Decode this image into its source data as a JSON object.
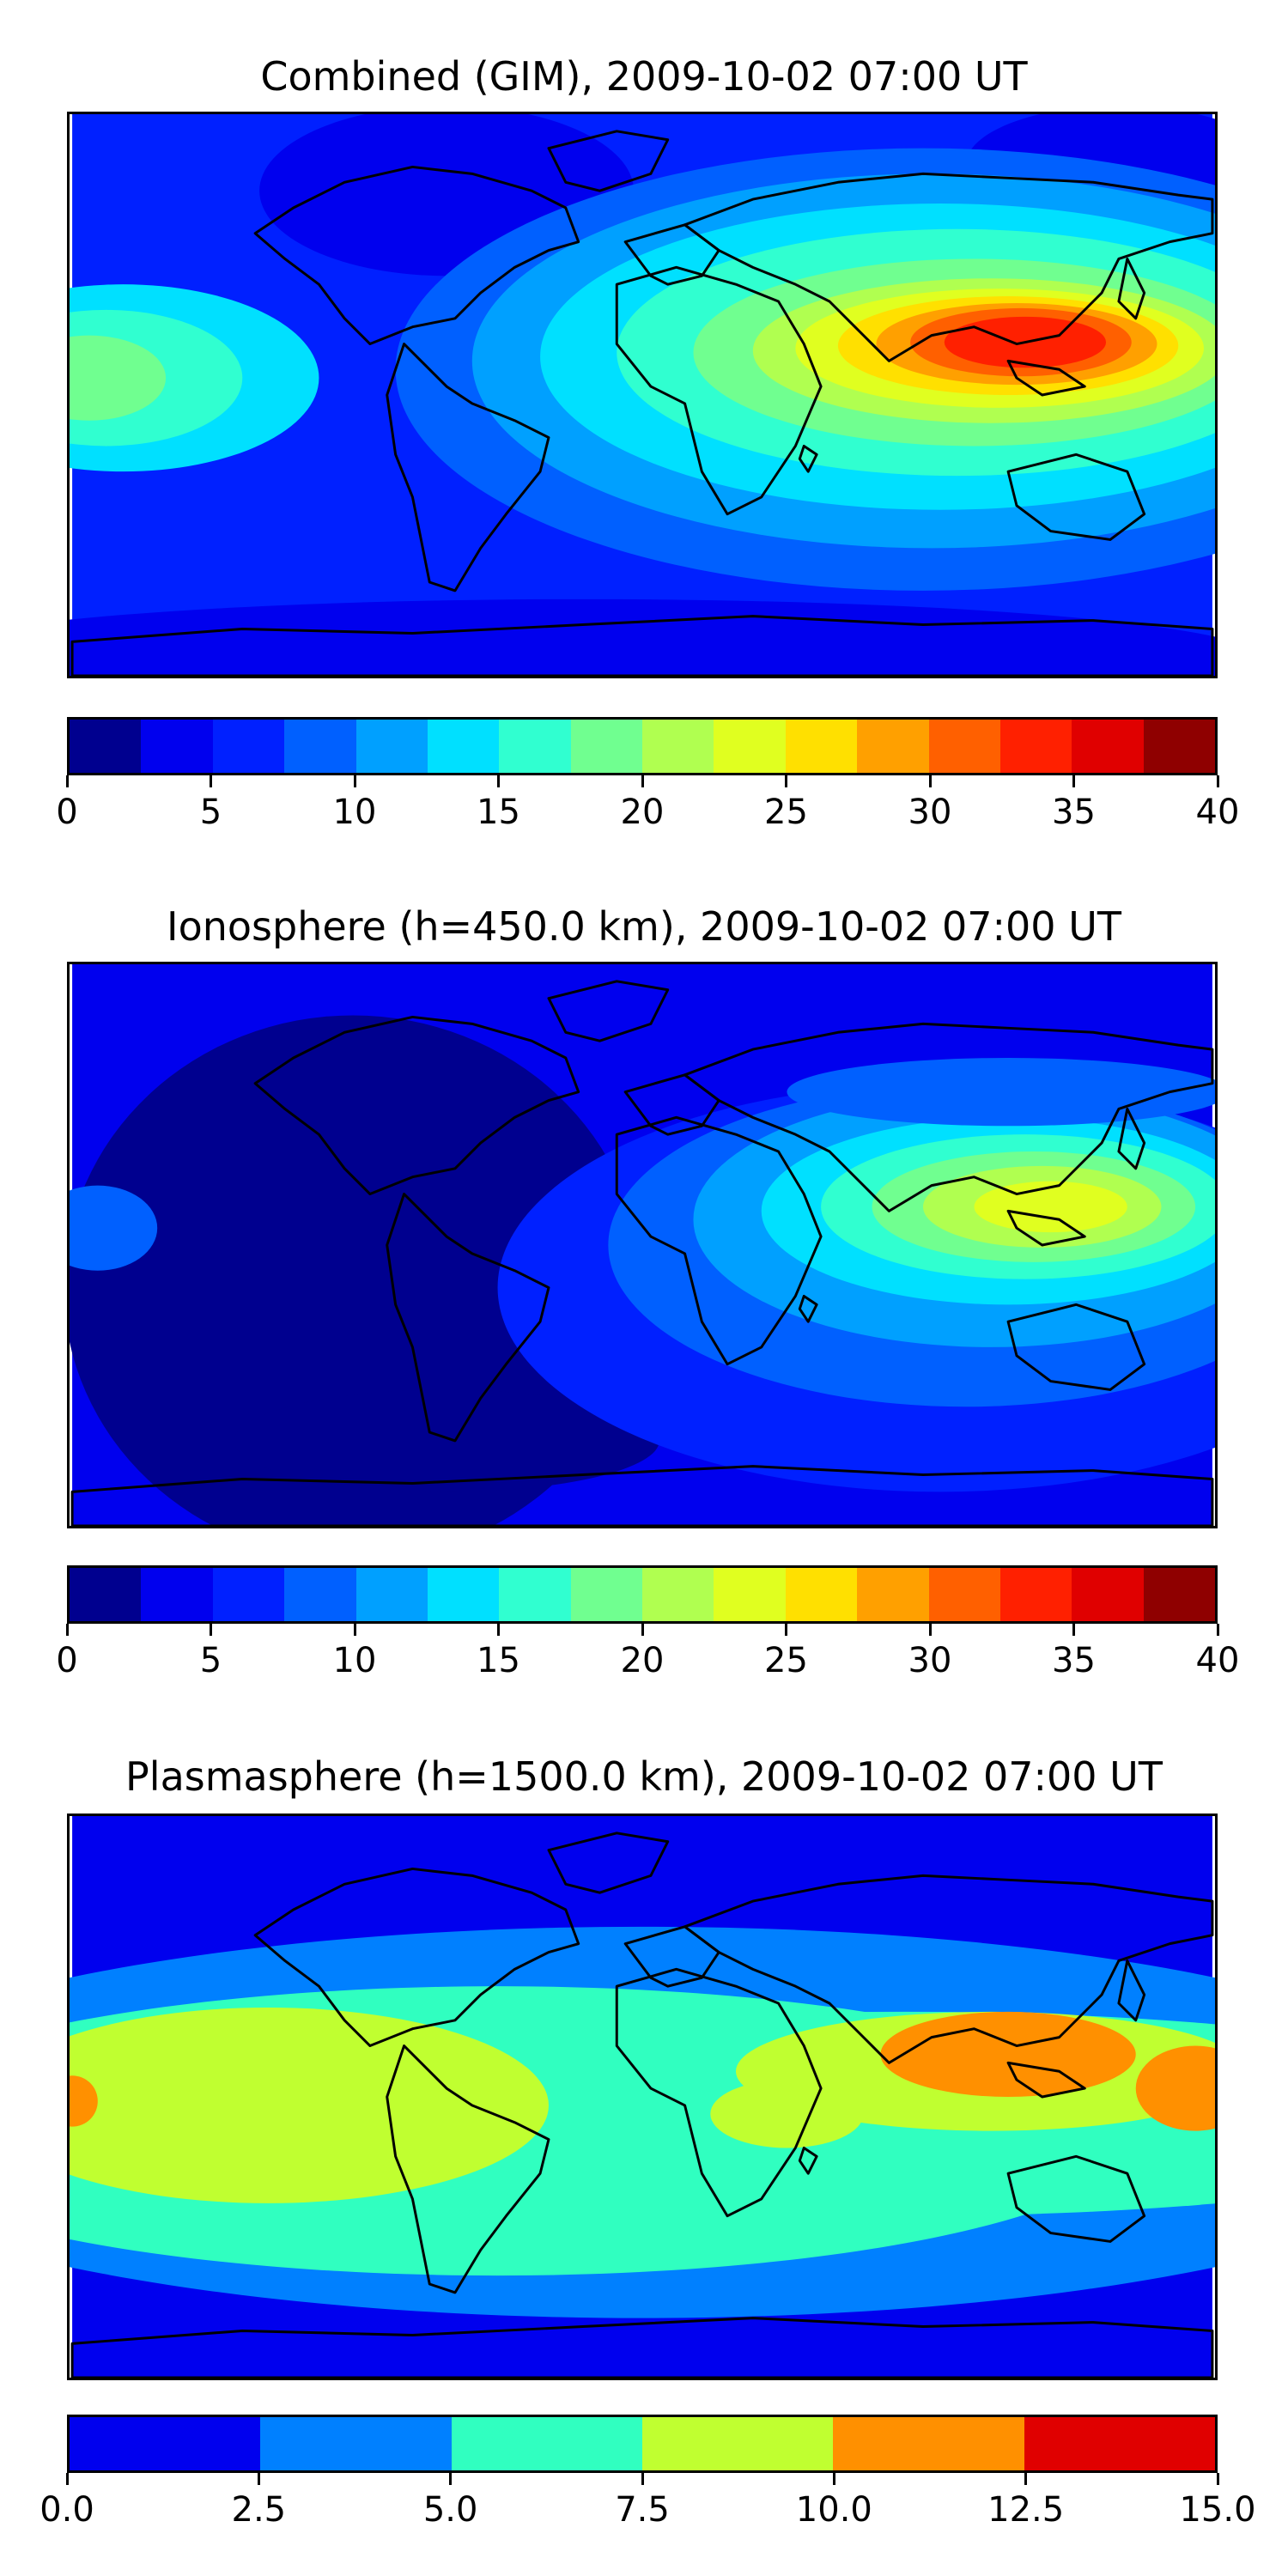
{
  "figure": "TEC maps",
  "colors": {
    "jet15": [
      "#00008f",
      "#0000ee",
      "#0020ff",
      "#0060ff",
      "#00a0ff",
      "#00e0ff",
      "#30ffd0",
      "#70ff90",
      "#b0ff50",
      "#e0ff20",
      "#ffe000",
      "#ffa000",
      "#ff6000",
      "#ff2000",
      "#e00000",
      "#8f0000"
    ],
    "jet6": [
      "#0000ee",
      "#0080ff",
      "#30ffc0",
      "#c0ff30",
      "#ff9000",
      "#e00000"
    ],
    "coast": "#000000"
  },
  "panels": [
    {
      "title": "Combined (GIM), 2009-10-02 07:00 UT",
      "colorbar": {
        "min": 0,
        "max": 40,
        "levels": 16,
        "palette": "jet15",
        "ticks": [
          "0",
          "5",
          "10",
          "15",
          "20",
          "25",
          "30",
          "35",
          "40"
        ]
      }
    },
    {
      "title": "Ionosphere  (h=450.0 km), 2009-10-02 07:00 UT",
      "colorbar": {
        "min": 0,
        "max": 40,
        "levels": 16,
        "palette": "jet15",
        "ticks": [
          "0",
          "5",
          "10",
          "15",
          "20",
          "25",
          "30",
          "35",
          "40"
        ]
      }
    },
    {
      "title": "Plasmasphere (h=1500.0 km), 2009-10-02 07:00 UT",
      "colorbar": {
        "min": 0,
        "max": 15,
        "levels": 6,
        "palette": "jet6",
        "ticks": [
          "0.0",
          "2.5",
          "5.0",
          "7.5",
          "10.0",
          "12.5",
          "15.0"
        ]
      }
    }
  ]
}
